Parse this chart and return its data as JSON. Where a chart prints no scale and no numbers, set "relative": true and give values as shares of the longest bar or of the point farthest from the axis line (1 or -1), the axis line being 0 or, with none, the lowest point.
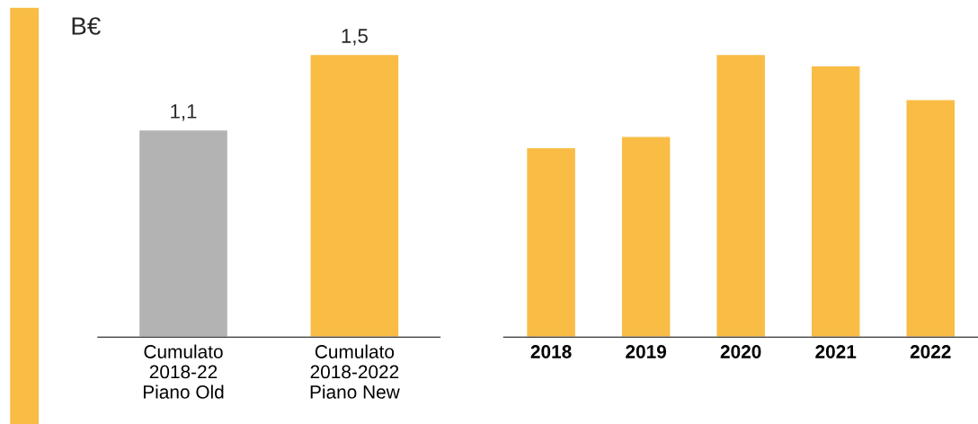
{
  "chart_data": [
    {
      "type": "bar",
      "ylabel": "B€",
      "categories": [
        "Cumulato\n2018-22\nPiano Old",
        "Cumulato\n2018-2022\nPiano New"
      ],
      "values": [
        1.1,
        1.5
      ],
      "colors": [
        "#b3b3b3",
        "#f9bc45"
      ],
      "value_labels": [
        "1,1",
        "1,5"
      ],
      "tick_labels": "x",
      "grid": false,
      "legend": false
    },
    {
      "type": "bar",
      "relative": true,
      "categories": [
        "2018",
        "2019",
        "2020",
        "2021",
        "2022"
      ],
      "values": [
        0.67,
        0.71,
        1,
        0.96,
        0.84
      ],
      "color": "#f9bc45",
      "tick_labels": "x",
      "grid": false,
      "legend": false
    }
  ]
}
